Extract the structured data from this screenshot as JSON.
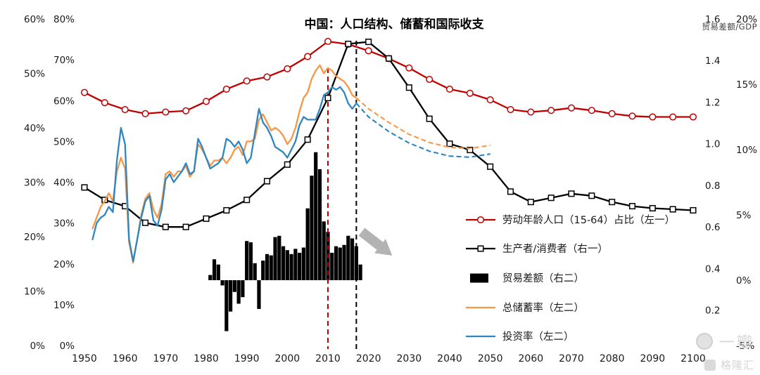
{
  "watermark": {
    "line1": "一瓣",
    "line2": "格隆汇"
  },
  "chart_data": {
    "type": "mixed",
    "title": "中国：人口结构、储蓄和国际收支",
    "x_axis": {
      "min": 1950,
      "max": 2100,
      "tick_step": 10,
      "tick_labels": [
        "1950",
        "1960",
        "1970",
        "1980",
        "1990",
        "2000",
        "2010",
        "2020",
        "2030",
        "2040",
        "2050",
        "2060",
        "2070",
        "2080",
        "2090",
        "2100"
      ]
    },
    "axes": {
      "left_outer": {
        "name": "左二",
        "min": 0,
        "max": 60,
        "tick_values": [
          0,
          10,
          20,
          30,
          40,
          50,
          60
        ],
        "tick_labels": [
          "0%",
          "10%",
          "20%",
          "30%",
          "40%",
          "50%",
          "60%"
        ]
      },
      "left_inner": {
        "name": "左一",
        "min": 0,
        "max": 80,
        "tick_values": [
          0,
          10,
          20,
          30,
          40,
          50,
          60,
          70,
          80
        ],
        "tick_labels": [
          "0%",
          "10%",
          "20%",
          "30%",
          "40%",
          "50%",
          "60%",
          "70%",
          "80%"
        ]
      },
      "right_inner": {
        "name": "右一",
        "min": 0.03,
        "max": 1.6,
        "tick_values": [
          0.2,
          0.4,
          0.6,
          0.8,
          1.0,
          1.2,
          1.4,
          1.6
        ],
        "tick_labels": [
          "0.2",
          "0.4",
          "0.6",
          "0.8",
          "1.0",
          "1.2",
          "1.4",
          "1.6"
        ]
      },
      "right_outer": {
        "name": "右二",
        "min": -5,
        "max": 20,
        "header": "贸易差额/GDP",
        "tick_values": [
          -5,
          0,
          5,
          10,
          15,
          20
        ],
        "tick_labels": [
          "-5%",
          "0%",
          "5%",
          "10%",
          "15%",
          "20%"
        ]
      }
    },
    "series": [
      {
        "key": "labor-share",
        "name": "劳动年龄人口（15-64）占比（左一）",
        "axis": "left_inner",
        "color": "#C00000",
        "marker": "circle",
        "points_solid": [
          [
            1950,
            62
          ],
          [
            1955,
            59.5
          ],
          [
            1960,
            57.8
          ],
          [
            1965,
            56.8
          ],
          [
            1970,
            57.2
          ],
          [
            1975,
            57.5
          ],
          [
            1980,
            59.8
          ],
          [
            1985,
            62.8
          ],
          [
            1990,
            64.8
          ],
          [
            1995,
            65.8
          ],
          [
            2000,
            67.8
          ],
          [
            2005,
            70.8
          ],
          [
            2010,
            74.5
          ],
          [
            2015,
            73.8
          ],
          [
            2020,
            72.2
          ],
          [
            2025,
            70.3
          ],
          [
            2030,
            68
          ],
          [
            2035,
            65.2
          ],
          [
            2040,
            62.8
          ],
          [
            2045,
            61.8
          ],
          [
            2050,
            60.2
          ],
          [
            2055,
            57.8
          ],
          [
            2060,
            57.2
          ],
          [
            2065,
            57.6
          ],
          [
            2070,
            58.2
          ],
          [
            2075,
            57.6
          ],
          [
            2080,
            56.8
          ],
          [
            2085,
            56.2
          ],
          [
            2090,
            56
          ],
          [
            2095,
            56
          ],
          [
            2100,
            56
          ]
        ]
      },
      {
        "key": "producer-consumer",
        "name": "生产者/消费者（右一）",
        "axis": "right_inner",
        "color": "#000000",
        "marker": "square",
        "points_solid": [
          [
            1950,
            0.79
          ],
          [
            1955,
            0.73
          ],
          [
            1960,
            0.7
          ],
          [
            1965,
            0.62
          ],
          [
            1970,
            0.6
          ],
          [
            1975,
            0.6
          ],
          [
            1980,
            0.64
          ],
          [
            1985,
            0.68
          ],
          [
            1990,
            0.73
          ],
          [
            1995,
            0.82
          ],
          [
            2000,
            0.9
          ],
          [
            2005,
            1.02
          ],
          [
            2010,
            1.22
          ],
          [
            2015,
            1.48
          ],
          [
            2020,
            1.49
          ],
          [
            2025,
            1.41
          ],
          [
            2030,
            1.27
          ],
          [
            2035,
            1.12
          ],
          [
            2040,
            1.0
          ],
          [
            2045,
            0.97
          ],
          [
            2050,
            0.89
          ],
          [
            2055,
            0.77
          ],
          [
            2060,
            0.72
          ],
          [
            2065,
            0.74
          ],
          [
            2070,
            0.76
          ],
          [
            2075,
            0.75
          ],
          [
            2080,
            0.72
          ],
          [
            2085,
            0.7
          ],
          [
            2090,
            0.69
          ],
          [
            2095,
            0.685
          ],
          [
            2100,
            0.68
          ]
        ]
      },
      {
        "key": "savings-rate",
        "name": "总储蓄率（左二）",
        "axis": "left_outer",
        "color": "#F79646",
        "marker": "none",
        "points_solid": [
          [
            1952,
            21.5
          ],
          [
            1953,
            23.5
          ],
          [
            1954,
            25.5
          ],
          [
            1955,
            26.5
          ],
          [
            1956,
            28
          ],
          [
            1957,
            26.5
          ],
          [
            1958,
            32
          ],
          [
            1959,
            34.5
          ],
          [
            1960,
            32.5
          ],
          [
            1961,
            19
          ],
          [
            1962,
            15.2
          ],
          [
            1963,
            19.5
          ],
          [
            1964,
            24
          ],
          [
            1965,
            27
          ],
          [
            1966,
            28
          ],
          [
            1967,
            25
          ],
          [
            1968,
            23.5
          ],
          [
            1969,
            26
          ],
          [
            1970,
            31.5
          ],
          [
            1971,
            32
          ],
          [
            1972,
            31
          ],
          [
            1973,
            32
          ],
          [
            1974,
            32
          ],
          [
            1975,
            33
          ],
          [
            1976,
            31
          ],
          [
            1977,
            32
          ],
          [
            1978,
            37
          ],
          [
            1979,
            36
          ],
          [
            1980,
            34.5
          ],
          [
            1981,
            33
          ],
          [
            1982,
            34
          ],
          [
            1983,
            34
          ],
          [
            1984,
            34.5
          ],
          [
            1985,
            33.5
          ],
          [
            1986,
            34.5
          ],
          [
            1987,
            36
          ],
          [
            1988,
            36.5
          ],
          [
            1989,
            35
          ],
          [
            1990,
            37.5
          ],
          [
            1991,
            37.5
          ],
          [
            1992,
            38
          ],
          [
            1993,
            41.5
          ],
          [
            1994,
            42.5
          ],
          [
            1995,
            41
          ],
          [
            1996,
            39.5
          ],
          [
            1997,
            40
          ],
          [
            1998,
            39.5
          ],
          [
            1999,
            38.5
          ],
          [
            2000,
            37
          ],
          [
            2001,
            38
          ],
          [
            2002,
            40
          ],
          [
            2003,
            43
          ],
          [
            2004,
            45.5
          ],
          [
            2005,
            46.5
          ],
          [
            2006,
            49
          ],
          [
            2007,
            50.5
          ],
          [
            2008,
            51.5
          ],
          [
            2009,
            50
          ],
          [
            2010,
            51
          ],
          [
            2011,
            50.5
          ],
          [
            2012,
            49.5
          ],
          [
            2013,
            49
          ],
          [
            2014,
            48.5
          ],
          [
            2015,
            47.5
          ],
          [
            2016,
            46
          ],
          [
            2017,
            45.5
          ]
        ],
        "points_dashed": [
          [
            2017,
            45.5
          ],
          [
            2020,
            43.5
          ],
          [
            2025,
            41
          ],
          [
            2030,
            38.8
          ],
          [
            2035,
            37.3
          ],
          [
            2040,
            36.4
          ],
          [
            2045,
            36.2
          ],
          [
            2050,
            36.8
          ]
        ]
      },
      {
        "key": "investment-rate",
        "name": "投资率（左二）",
        "axis": "left_outer",
        "color": "#2E86C1",
        "marker": "none",
        "points_solid": [
          [
            1952,
            19.5
          ],
          [
            1953,
            22.5
          ],
          [
            1954,
            23.5
          ],
          [
            1955,
            24
          ],
          [
            1956,
            25.5
          ],
          [
            1957,
            24.5
          ],
          [
            1958,
            34
          ],
          [
            1959,
            40
          ],
          [
            1960,
            37
          ],
          [
            1961,
            19.5
          ],
          [
            1962,
            15.5
          ],
          [
            1963,
            19.5
          ],
          [
            1964,
            23.5
          ],
          [
            1965,
            26.5
          ],
          [
            1966,
            27.5
          ],
          [
            1967,
            23
          ],
          [
            1968,
            22
          ],
          [
            1969,
            25
          ],
          [
            1970,
            30.5
          ],
          [
            1971,
            31.5
          ],
          [
            1972,
            30
          ],
          [
            1973,
            31
          ],
          [
            1974,
            32
          ],
          [
            1975,
            33.5
          ],
          [
            1976,
            31.5
          ],
          [
            1977,
            32
          ],
          [
            1978,
            38
          ],
          [
            1979,
            36.5
          ],
          [
            1980,
            34.5
          ],
          [
            1981,
            32.5
          ],
          [
            1982,
            33
          ],
          [
            1983,
            33.5
          ],
          [
            1984,
            34.5
          ],
          [
            1985,
            38
          ],
          [
            1986,
            37.5
          ],
          [
            1987,
            36.5
          ],
          [
            1988,
            37.5
          ],
          [
            1989,
            36
          ],
          [
            1990,
            33.5
          ],
          [
            1991,
            34.5
          ],
          [
            1992,
            39
          ],
          [
            1993,
            43.5
          ],
          [
            1994,
            41
          ],
          [
            1995,
            40
          ],
          [
            1996,
            38.5
          ],
          [
            1997,
            36.5
          ],
          [
            1998,
            36
          ],
          [
            1999,
            35.5
          ],
          [
            2000,
            34.5
          ],
          [
            2001,
            36
          ],
          [
            2002,
            37.5
          ],
          [
            2003,
            40.5
          ],
          [
            2004,
            42
          ],
          [
            2005,
            41.5
          ],
          [
            2006,
            41.5
          ],
          [
            2007,
            41.5
          ],
          [
            2008,
            43.5
          ],
          [
            2009,
            46
          ],
          [
            2010,
            46.5
          ],
          [
            2011,
            47.5
          ],
          [
            2012,
            47
          ],
          [
            2013,
            47.5
          ],
          [
            2014,
            46.5
          ],
          [
            2015,
            44.5
          ],
          [
            2016,
            43.5
          ],
          [
            2017,
            44.5
          ]
        ],
        "points_dashed": [
          [
            2017,
            44.5
          ],
          [
            2020,
            42
          ],
          [
            2025,
            39.3
          ],
          [
            2030,
            37.2
          ],
          [
            2035,
            35.7
          ],
          [
            2040,
            34.8
          ],
          [
            2045,
            34.6
          ],
          [
            2050,
            35.2
          ]
        ]
      }
    ],
    "bars": {
      "key": "trade-balance",
      "name": "贸易差额（右二）",
      "axis": "right_outer",
      "color": "#000000",
      "points": [
        [
          1981,
          0.4
        ],
        [
          1982,
          1.6
        ],
        [
          1983,
          1.2
        ],
        [
          1984,
          -0.4
        ],
        [
          1985,
          -3.9
        ],
        [
          1986,
          -2.4
        ],
        [
          1987,
          -0.9
        ],
        [
          1988,
          -1.8
        ],
        [
          1989,
          -1.3
        ],
        [
          1990,
          3.0
        ],
        [
          1991,
          2.9
        ],
        [
          1992,
          1.3
        ],
        [
          1993,
          -2.2
        ],
        [
          1994,
          1.5
        ],
        [
          1995,
          2.0
        ],
        [
          1996,
          1.9
        ],
        [
          1997,
          3.3
        ],
        [
          1998,
          3.4
        ],
        [
          1999,
          2.6
        ],
        [
          2000,
          2.3
        ],
        [
          2001,
          2.0
        ],
        [
          2002,
          2.4
        ],
        [
          2003,
          2.1
        ],
        [
          2004,
          2.5
        ],
        [
          2005,
          5.5
        ],
        [
          2006,
          8.0
        ],
        [
          2007,
          9.8
        ],
        [
          2008,
          8.5
        ],
        [
          2009,
          4.5
        ],
        [
          2010,
          3.7
        ],
        [
          2011,
          2.1
        ],
        [
          2012,
          2.6
        ],
        [
          2013,
          2.5
        ],
        [
          2014,
          2.7
        ],
        [
          2015,
          3.4
        ],
        [
          2016,
          3.2
        ],
        [
          2017,
          2.6
        ],
        [
          2018,
          1.2
        ]
      ]
    },
    "vlines": [
      {
        "x": 2010,
        "color": "#C00000"
      },
      {
        "x": 2017,
        "color": "#000000"
      }
    ],
    "legend": [
      {
        "label": "劳动年龄人口（15-64）占比（左一）",
        "type": "line-circle",
        "color": "#C00000"
      },
      {
        "label": "生产者/消费者（右一）",
        "type": "line-square",
        "color": "#000000"
      },
      {
        "label": "贸易差额（右二）",
        "type": "bar",
        "color": "#000000"
      },
      {
        "label": "总储蓄率（左二）",
        "type": "line",
        "color": "#F79646"
      },
      {
        "label": "投资率（左二）",
        "type": "line",
        "color": "#2E86C1"
      }
    ]
  }
}
